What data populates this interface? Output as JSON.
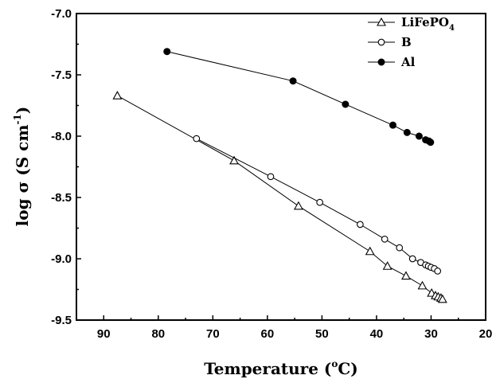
{
  "chart_data": {
    "type": "line",
    "xlabel": "Temperature (°C)",
    "xlabel_main": "Temperature (",
    "xlabel_sup": "o",
    "xlabel_end": "C)",
    "ylabel_main": "log σ (S cm",
    "ylabel_sup": "-1",
    "ylabel_end": ")",
    "xlim": [
      95,
      20
    ],
    "ylim": [
      -9.5,
      -7.0
    ],
    "x_reversed": true,
    "x_ticks": [
      "90",
      "80",
      "70",
      "60",
      "50",
      "40",
      "30",
      "20"
    ],
    "x_tick_values": [
      90,
      80,
      70,
      60,
      50,
      40,
      30,
      20
    ],
    "y_ticks": [
      "-7.0",
      "-7.5",
      "-8.0",
      "-8.5",
      "-9.0",
      "-9.5"
    ],
    "y_tick_values": [
      -7.0,
      -7.5,
      -8.0,
      -8.5,
      -9.0,
      -9.5
    ],
    "grid": false,
    "legend_position": "top-right",
    "series": [
      {
        "name_main": "LiFePO",
        "name_sub": "4",
        "marker": "open-triangle",
        "x": [
          87.5,
          66.1,
          54.3,
          41.2,
          38.0,
          34.6,
          31.6,
          29.9,
          29.2,
          28.7,
          28.2,
          27.9
        ],
        "y": [
          -7.67,
          -8.2,
          -8.57,
          -8.94,
          -9.06,
          -9.14,
          -9.22,
          -9.28,
          -9.3,
          -9.31,
          -9.32,
          -9.33
        ]
      },
      {
        "name_main": "B",
        "name_sub": "",
        "marker": "open-circle",
        "x": [
          73.0,
          59.4,
          50.4,
          43.0,
          38.5,
          35.8,
          33.4,
          31.9,
          31.0,
          30.5,
          30.0,
          29.4,
          28.8
        ],
        "y": [
          -8.02,
          -8.33,
          -8.54,
          -8.72,
          -8.84,
          -8.91,
          -9.0,
          -9.03,
          -9.05,
          -9.06,
          -9.07,
          -9.08,
          -9.1
        ]
      },
      {
        "name_main": "Al",
        "name_sub": "",
        "marker": "filled-circle",
        "x": [
          78.4,
          55.3,
          45.7,
          37.0,
          34.4,
          32.2,
          31.0,
          30.4,
          30.1
        ],
        "y": [
          -7.31,
          -7.55,
          -7.74,
          -7.91,
          -7.97,
          -8.0,
          -8.03,
          -8.04,
          -8.05
        ]
      }
    ]
  }
}
